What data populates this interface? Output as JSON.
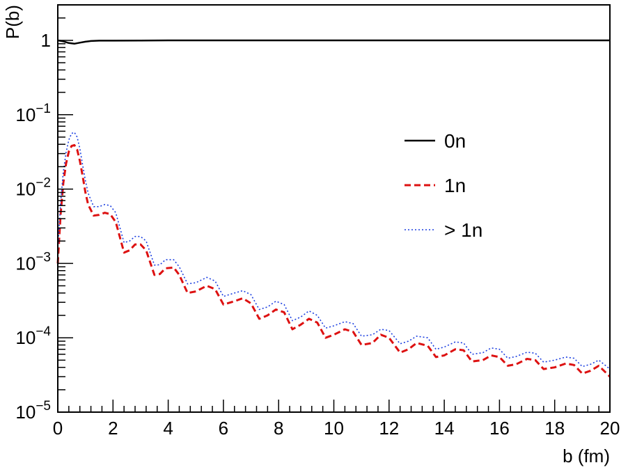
{
  "chart_data": {
    "type": "line",
    "xlabel": "b (fm)",
    "ylabel": "P(b)",
    "xlim": [
      0,
      20
    ],
    "ylim": [
      1e-05,
      3
    ],
    "yscale": "log",
    "x_ticks": [
      "0",
      "2",
      "4",
      "6",
      "8",
      "10",
      "12",
      "14",
      "16",
      "18",
      "20"
    ],
    "y_ticks": [
      {
        "value": 1e-05,
        "base": "10",
        "exp": "−5"
      },
      {
        "value": 0.0001,
        "base": "10",
        "exp": "−4"
      },
      {
        "value": 0.001,
        "base": "10",
        "exp": "−3"
      },
      {
        "value": 0.01,
        "base": "10",
        "exp": "−2"
      },
      {
        "value": 0.1,
        "base": "10",
        "exp": "−1"
      },
      {
        "value": 1,
        "base": "1",
        "exp": ""
      }
    ],
    "legend_position": "right",
    "series": [
      {
        "name": "0n",
        "color": "#000000",
        "style": "solid",
        "x": [
          0,
          0.2,
          0.4,
          0.6,
          0.8,
          1.0,
          1.2,
          1.5,
          2,
          3,
          4,
          6,
          8,
          10,
          12,
          14,
          16,
          18,
          20
        ],
        "y": [
          1.0,
          0.97,
          0.92,
          0.9,
          0.93,
          0.96,
          0.98,
          0.99,
          0.99,
          0.995,
          1.0,
          1.0,
          1.0,
          1.0,
          1.0,
          1.0,
          1.0,
          1.0,
          1.0
        ]
      },
      {
        "name": "1n",
        "color": "#dd1111",
        "style": "dashed",
        "x": [
          0,
          0.1,
          0.2,
          0.3,
          0.4,
          0.5,
          0.6,
          0.7,
          0.8,
          0.9,
          1.0,
          1.1,
          1.3,
          1.5,
          1.7,
          1.9,
          2.1,
          2.4,
          2.6,
          2.8,
          3.0,
          3.2,
          3.5,
          3.7,
          3.9,
          4.2,
          4.4,
          4.7,
          5.0,
          5.4,
          5.7,
          6.0,
          6.4,
          6.7,
          7.0,
          7.3,
          7.6,
          7.9,
          8.2,
          8.5,
          8.8,
          9.1,
          9.4,
          9.7,
          10.0,
          10.4,
          10.7,
          11.0,
          11.4,
          11.7,
          12.0,
          12.4,
          12.7,
          13.0,
          13.4,
          13.7,
          14.0,
          14.4,
          14.7,
          15.0,
          15.4,
          15.7,
          16.0,
          16.3,
          16.6,
          17.0,
          17.3,
          17.6,
          18.0,
          18.4,
          18.7,
          19.0,
          19.3,
          19.6,
          20.0
        ],
        "y": [
          0.001,
          0.0045,
          0.012,
          0.022,
          0.032,
          0.038,
          0.039,
          0.034,
          0.024,
          0.015,
          0.009,
          0.0062,
          0.0044,
          0.0045,
          0.0048,
          0.0046,
          0.0036,
          0.0014,
          0.0015,
          0.0018,
          0.0018,
          0.0015,
          0.0007,
          0.00072,
          0.00086,
          0.00088,
          0.0007,
          0.0004,
          0.00042,
          0.0005,
          0.00045,
          0.00028,
          0.00031,
          0.00034,
          0.00029,
          0.00018,
          0.0002,
          0.00024,
          0.00022,
          0.00013,
          0.00015,
          0.00018,
          0.00016,
          0.0001,
          0.00011,
          0.00013,
          0.00012,
          8e-05,
          8.5e-05,
          0.00011,
          0.0001,
          6.3e-05,
          7e-05,
          8.5e-05,
          7.8e-05,
          5.5e-05,
          5.8e-05,
          7e-05,
          6.8e-05,
          4.8e-05,
          5e-05,
          5.8e-05,
          5.5e-05,
          4.2e-05,
          4.4e-05,
          5.2e-05,
          5e-05,
          3.8e-05,
          4e-05,
          4.5e-05,
          4.3e-05,
          3.3e-05,
          3.6e-05,
          4.2e-05,
          3e-05
        ]
      },
      {
        "name": "> 1n",
        "color": "#1a3ee0",
        "style": "dotted",
        "x": [
          0,
          0.1,
          0.2,
          0.3,
          0.4,
          0.5,
          0.6,
          0.7,
          0.8,
          0.9,
          1.0,
          1.1,
          1.3,
          1.5,
          1.7,
          1.9,
          2.1,
          2.4,
          2.6,
          2.8,
          3.0,
          3.2,
          3.5,
          3.7,
          3.9,
          4.2,
          4.4,
          4.7,
          5.0,
          5.4,
          5.7,
          6.0,
          6.4,
          6.7,
          7.0,
          7.3,
          7.6,
          7.9,
          8.2,
          8.5,
          8.8,
          9.1,
          9.4,
          9.7,
          10.0,
          10.4,
          10.7,
          11.0,
          11.4,
          11.7,
          12.0,
          12.4,
          12.7,
          13.0,
          13.4,
          13.7,
          14.0,
          14.4,
          14.7,
          15.0,
          15.4,
          15.7,
          16.0,
          16.3,
          16.6,
          17.0,
          17.3,
          17.6,
          18.0,
          18.4,
          18.7,
          19.0,
          19.3,
          19.6,
          20.0
        ],
        "y": [
          0.0015,
          0.0065,
          0.017,
          0.031,
          0.046,
          0.056,
          0.058,
          0.05,
          0.035,
          0.021,
          0.013,
          0.0088,
          0.0058,
          0.0058,
          0.0062,
          0.006,
          0.0048,
          0.0019,
          0.002,
          0.0023,
          0.0023,
          0.002,
          0.00095,
          0.00096,
          0.00112,
          0.00112,
          0.0009,
          0.00053,
          0.00055,
          0.00065,
          0.00058,
          0.00036,
          0.0004,
          0.00043,
          0.00038,
          0.00024,
          0.00026,
          0.00031,
          0.00028,
          0.00017,
          0.00019,
          0.00023,
          0.0002,
          0.000135,
          0.000145,
          0.000165,
          0.000155,
          0.000105,
          0.00011,
          0.00013,
          0.000125,
          8.3e-05,
          9e-05,
          0.000105,
          0.0001,
          7e-05,
          7.5e-05,
          8.8e-05,
          8.5e-05,
          6e-05,
          6.3e-05,
          7.3e-05,
          7e-05,
          5.3e-05,
          5.6e-05,
          6.4e-05,
          6.2e-05,
          4.7e-05,
          5e-05,
          5.5e-05,
          5.3e-05,
          4.1e-05,
          4.4e-05,
          5e-05,
          3.8e-05
        ]
      }
    ]
  }
}
